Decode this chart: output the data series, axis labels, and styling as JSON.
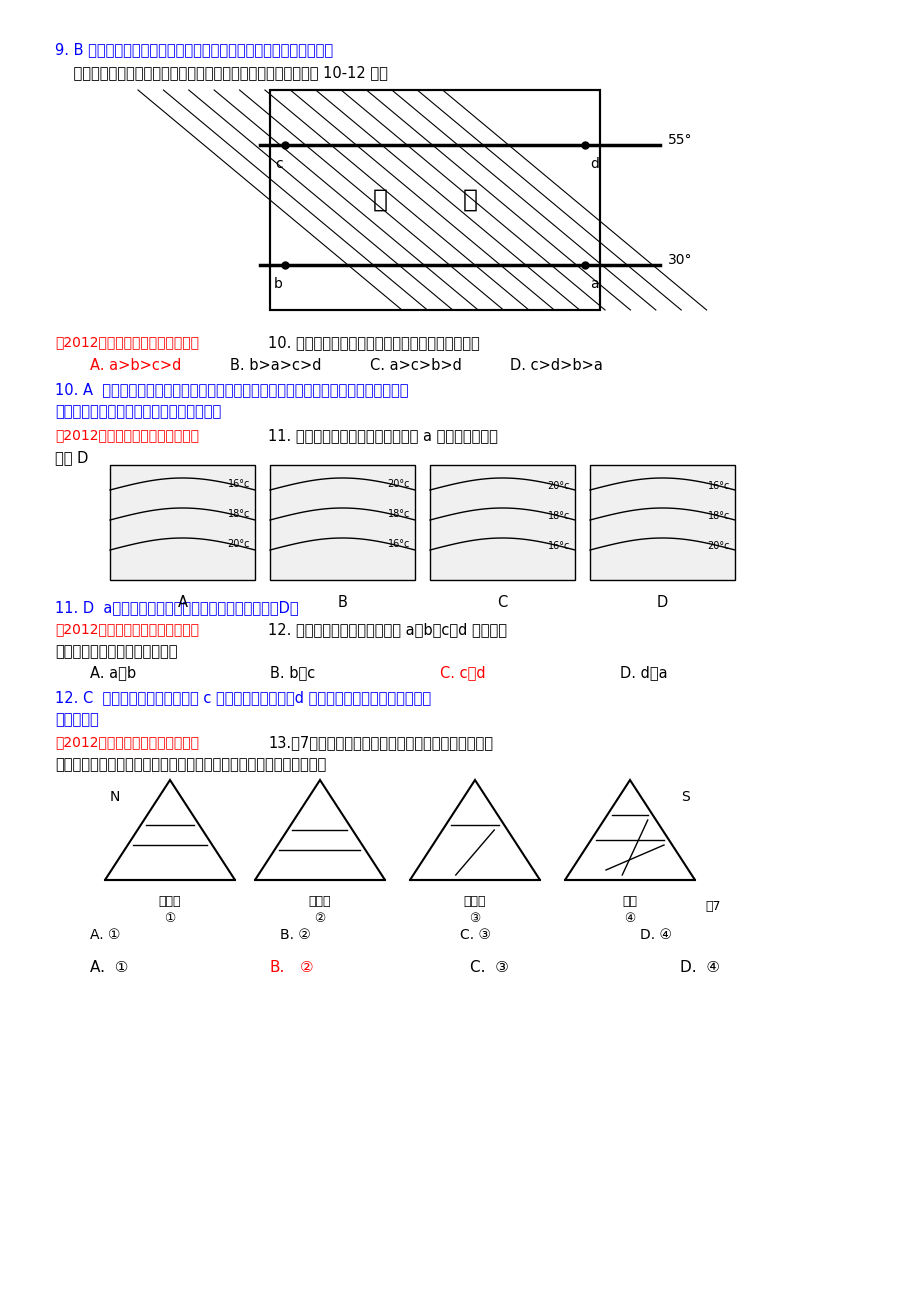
{
  "bg_color": "#ffffff",
  "text_color": "#000000",
  "blue_color": "#0000FF",
  "red_color": "#FF0000",
  "dark_red": "#CC0000",
  "line9_text": "9. B 商品谷物农业指人均粮食产量大，这与人均耕地面积大相对应。",
  "line10_intro": "    读图，图中阴影部分表示陆地，周边空白处表示海洋。据图判读 10-12 题。",
  "q10_header": "（2012年扬州中学学业水平模拟）10. 图中所示海区表层海水的温度由高到低的排序是",
  "q10_options": "    A. a>b>c>d      B. b>a>c>d   C. a>c>b>d      D. c>d>b>a",
  "q10_answer": "10. A  海区海水的温度较低纬度大于较高纬度，同纬度海区，暖流大于寒流。在中纬度\n海区，大陆东岸为暖流，大陆西岸为寒流。",
  "q11_header": "（2012年扬州中学学业水平模拟）11. 下列四幅图中，能正确反映图中 a 点等水温线分布\n的是 D",
  "q11_answer": "11. D  a点为暖流。在四幅图中表示北半球暖流的是D。",
  "q12_header": "（2012年扬州中学学业水平模拟）12. 若此图陆地是亚欧大陆，则 a、b、c、d 四地沿海\n地区的陆地自然带名称相同的是",
  "q12_options_1": "    A. a和b          B. b和c",
  "q12_options_2": "    C. c和d          D. d和a",
  "q12_answer": "12. C  若为亚欧大陆，可判断出 c 为温带海洋性气候，d 为温带季风气候，同为温带落叶\n阔叶林带。",
  "q13_header": "（2012年扬州中学学业水平模拟）13.图7是山地垂直自然带分布示意图，图下文字表示基\n带类型，如果图中四座山海拔高度相等，则以下四地纬度位置最高的是",
  "q13_labels": [
    "落叶林",
    "针叶林",
    "阔叶林",
    "雨林"
  ],
  "q13_numbers": [
    "①",
    "②",
    "③",
    "④"
  ],
  "q13_options_line1": "    A. ①           B. ②           C. ③           D. ④",
  "q13_answer_line": "    A. ①                 B. ②                 C. ③                       D. ④"
}
